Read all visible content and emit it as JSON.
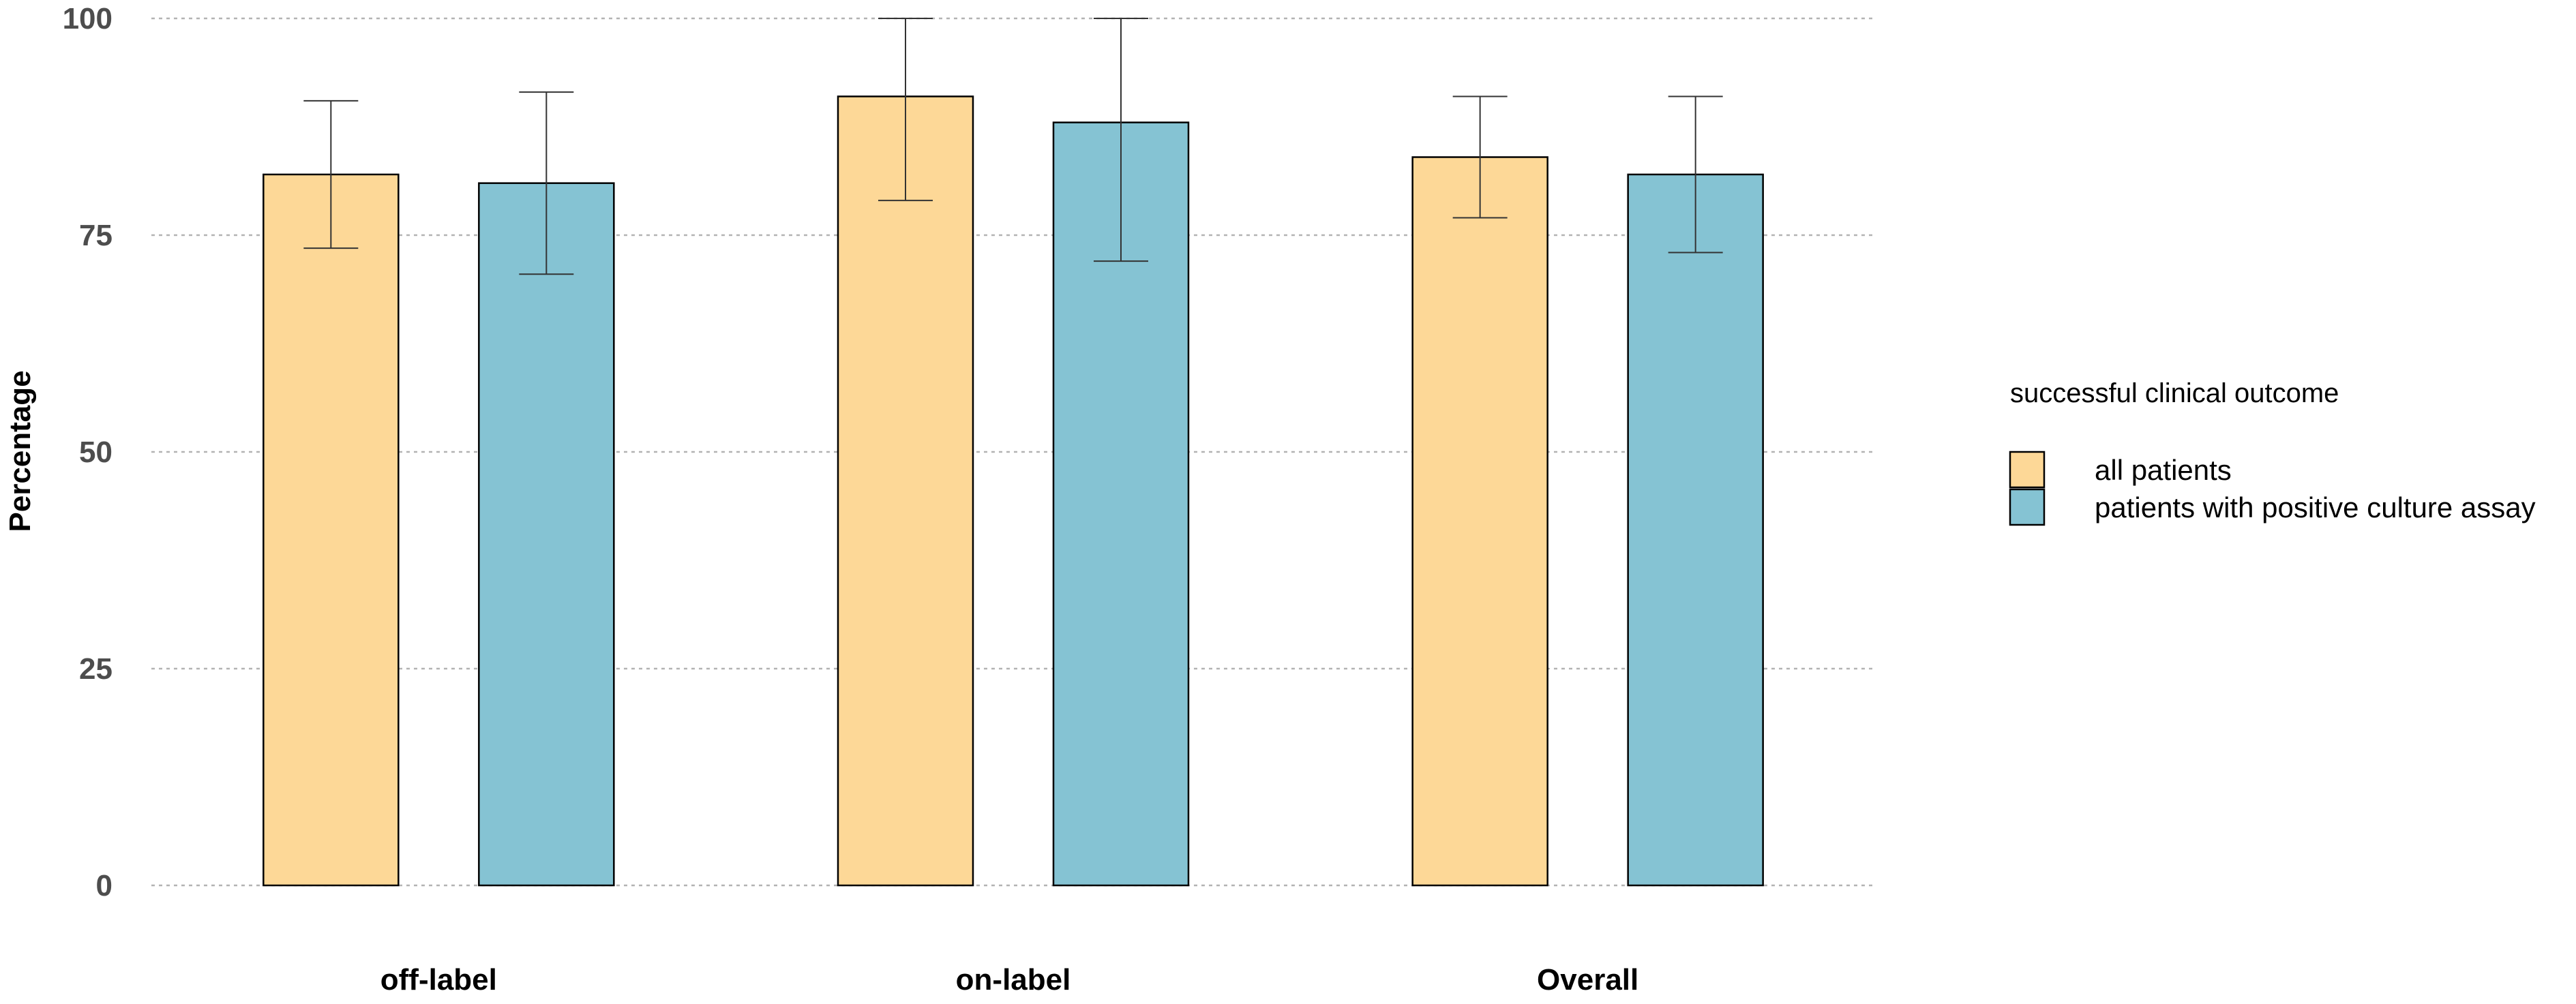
{
  "chart_data": {
    "type": "bar",
    "categories": [
      "off-label",
      "on-label",
      "Overall"
    ],
    "ylabel": "Percentage",
    "xlabel": "",
    "ylim": [
      0,
      100
    ],
    "yticks": [
      0,
      25,
      50,
      75,
      100
    ],
    "grid": "horizontal dashed",
    "legend_title": "successful clinical outcome",
    "legend_position": "right",
    "series": [
      {
        "name": "all patients",
        "color": "#FDD897",
        "values": [
          82,
          91,
          84
        ],
        "err_low": [
          73.5,
          79,
          77
        ],
        "err_high": [
          90.5,
          100,
          91
        ]
      },
      {
        "name": "patients with positive culture assay",
        "color": "#85C3D3",
        "values": [
          81,
          88,
          82
        ],
        "err_low": [
          70.5,
          72,
          73
        ],
        "err_high": [
          91.5,
          100,
          91
        ]
      }
    ]
  }
}
